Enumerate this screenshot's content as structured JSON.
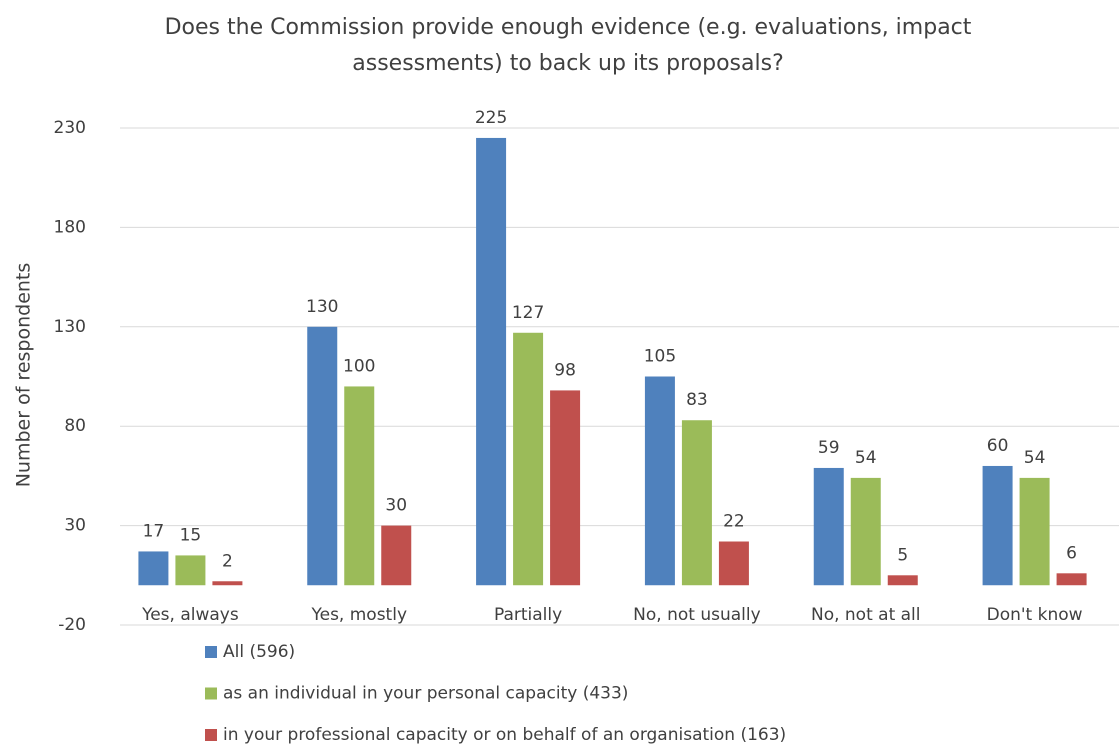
{
  "chart_data": {
    "type": "bar",
    "title": [
      "Does the Commission provide enough evidence (e.g. evaluations, impact",
      "assessments) to back up its proposals?"
    ],
    "y_label": "Number of respondents",
    "categories": [
      "Yes, always",
      "Yes, mostly",
      "Partially",
      "No, not usually",
      "No, not at all",
      "Don't know"
    ],
    "series": [
      {
        "name": "All  (596)",
        "color": "#4f81bd",
        "values": [
          17,
          130,
          225,
          105,
          59,
          60
        ]
      },
      {
        "name": "as an individual in your personal capacity  (433)",
        "color": "#9bbb59",
        "values": [
          15,
          100,
          127,
          83,
          54,
          54
        ]
      },
      {
        "name": "in your professional capacity or on behalf of an organisation  (163)",
        "color": "#c0504d",
        "values": [
          2,
          30,
          98,
          22,
          5,
          6
        ]
      }
    ],
    "ylim": [
      -20,
      230
    ],
    "yticks": [
      -20,
      30,
      80,
      130,
      180,
      230
    ],
    "grid": true,
    "legend": "bottom"
  }
}
